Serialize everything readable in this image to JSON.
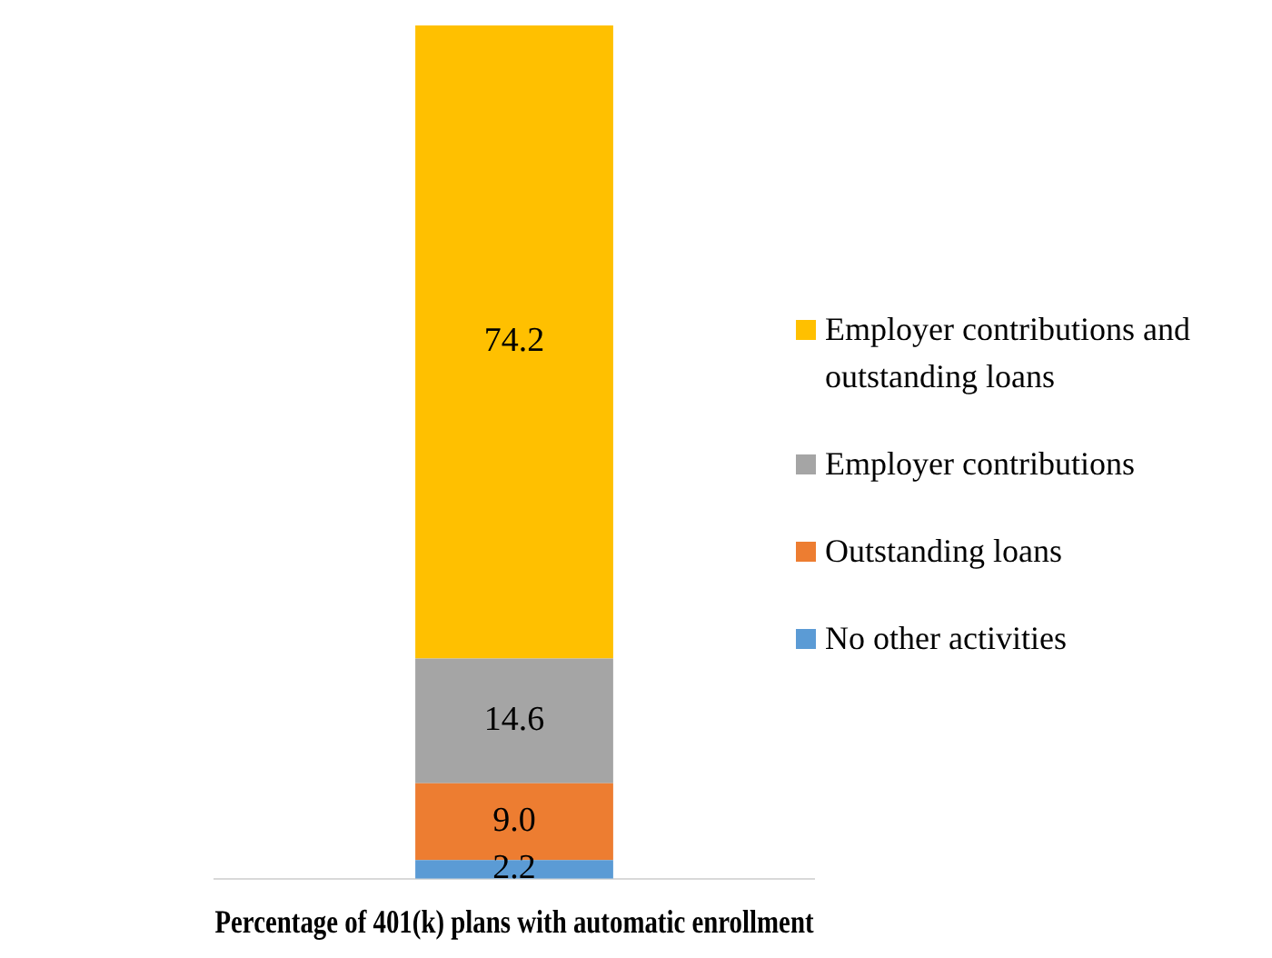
{
  "chart_data": {
    "type": "bar",
    "stacked": true,
    "xlabel": "Percentage of 401(k) plans with automatic enrollment",
    "categories": [
      null
    ],
    "legend": "right",
    "data_labels": true,
    "grid": false,
    "tick_labels": false,
    "series": [
      {
        "name": "No other activities",
        "color": "#5b9bd5",
        "values": [
          2.2
        ],
        "value_labels": [
          "2.2"
        ]
      },
      {
        "name": "Outstanding loans",
        "color": "#ed7d31",
        "values": [
          9.0
        ],
        "value_labels": [
          "9.0"
        ]
      },
      {
        "name": "Employer contributions",
        "color": "#a5a5a5",
        "values": [
          14.6
        ],
        "value_labels": [
          "14.6"
        ]
      },
      {
        "name": "Employer contributions and outstanding loans",
        "color": "#ffc000",
        "values": [
          74.2
        ],
        "value_labels": [
          "74.2"
        ]
      }
    ]
  }
}
